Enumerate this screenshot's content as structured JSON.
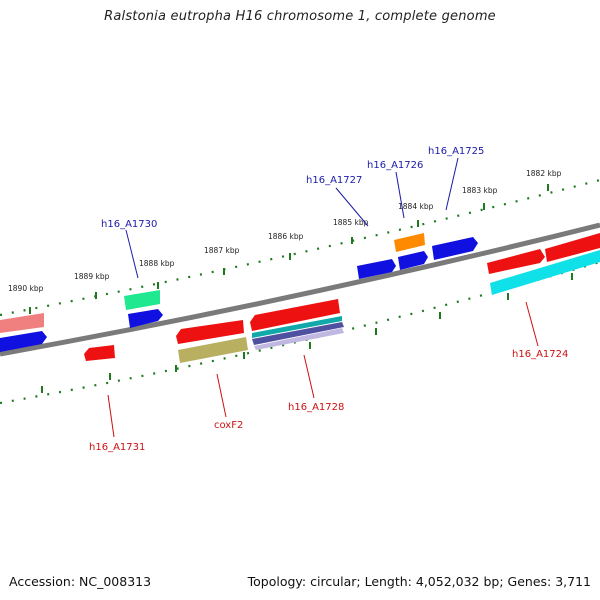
{
  "title": "Ralstonia eutropha H16 chromosome 1, complete genome",
  "footer": {
    "accession": "Accession: NC_008313",
    "topology": "Topology: circular; Length: 4,052,032 bp; Genes: 3,711"
  },
  "colors": {
    "backbone": "#808080",
    "tick": "#1f7a1f",
    "forward_label": "#1a1aaa",
    "reverse_label": "#cc1111",
    "red": "#ee1111",
    "blue": "#1010e0",
    "cyan": "#10e0e8",
    "green": "#20e890",
    "orange": "#ff8a00",
    "pink": "#f08080",
    "olive": "#b8b060",
    "teal": "#10a8a8",
    "navy": "#5050a0"
  },
  "kbp_labels": [
    "1882 kbp",
    "1883 kbp",
    "1884 kbp",
    "1885 kbp",
    "1886 kbp",
    "1887 kbp",
    "1888 kbp",
    "1889 kbp",
    "1890 kbp"
  ],
  "gene_labels": {
    "forward": [
      "h16_A1725",
      "h16_A1726",
      "h16_A1727",
      "h16_A1730"
    ],
    "reverse": [
      "h16_A1724",
      "h16_A1728",
      "coxF2",
      "h16_A1731"
    ]
  }
}
